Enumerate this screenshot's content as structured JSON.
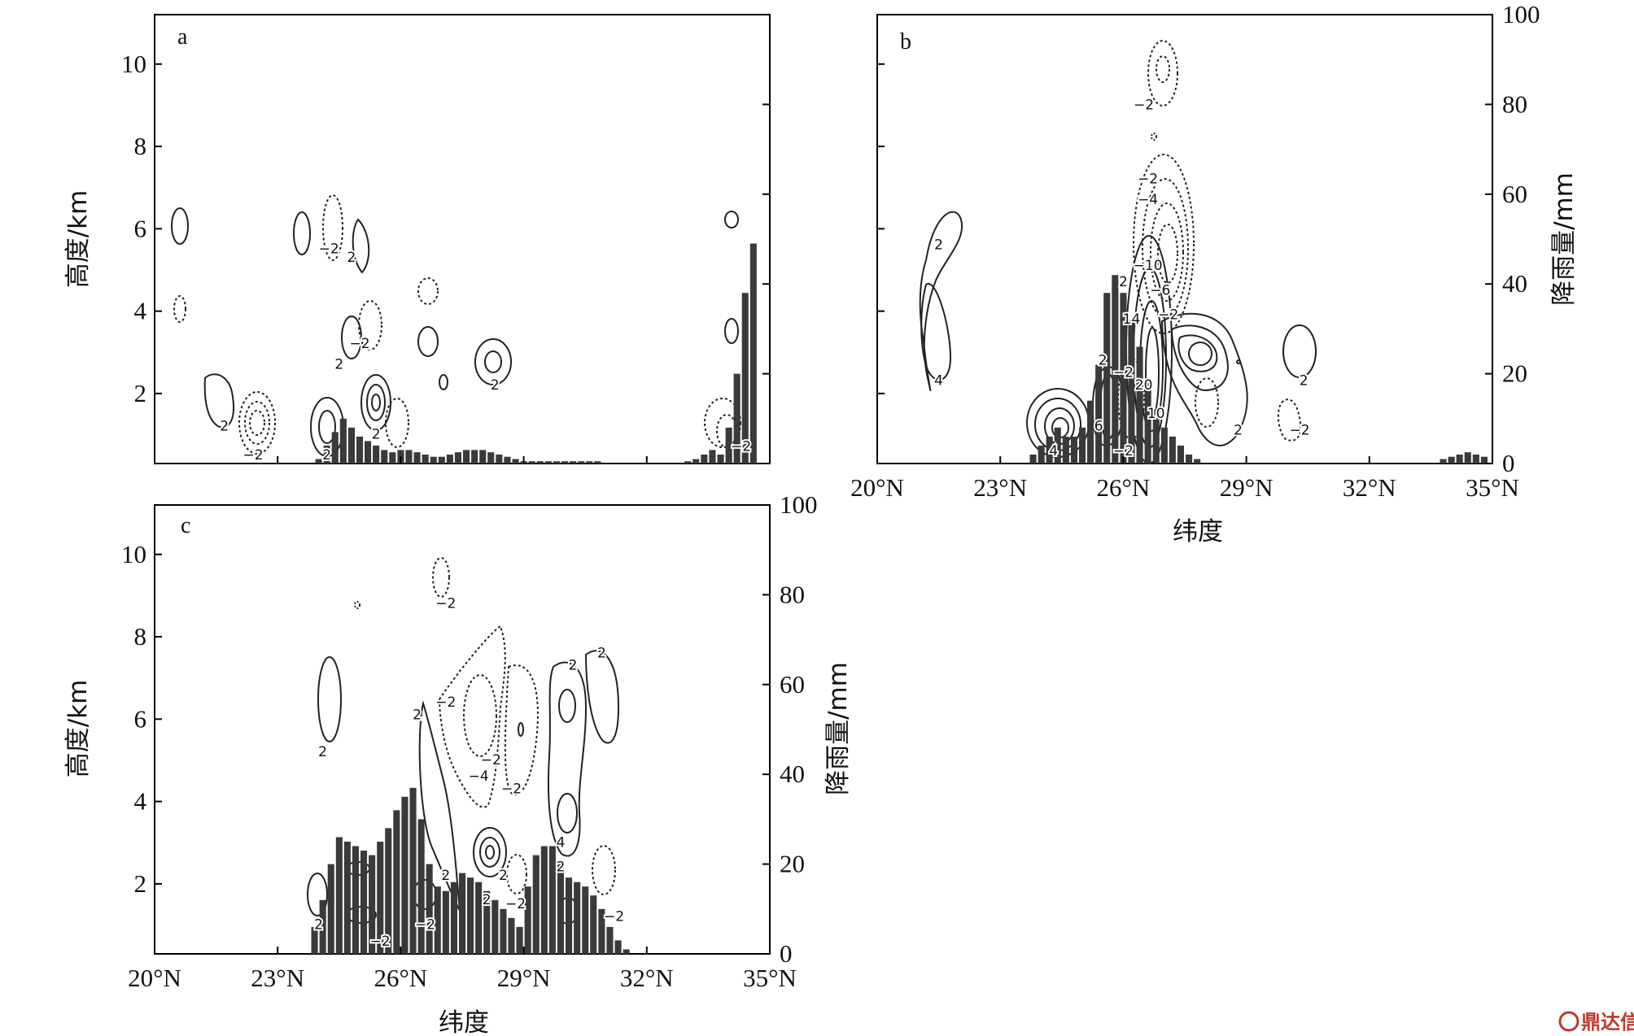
{
  "chart_data": [
    {
      "id": "a",
      "type": "bar",
      "panel_label": "a",
      "xlabel": "",
      "ylabel": "高度/km",
      "y2label": "",
      "xlim": [
        20,
        35
      ],
      "ylim": [
        0.3,
        11.2
      ],
      "y2lim": [
        0,
        100
      ],
      "x_ticks": [
        20,
        23,
        26,
        29,
        32,
        35
      ],
      "x_tick_labels": [],
      "y_ticks": [
        2,
        4,
        6,
        8,
        10
      ],
      "y_tick_labels": [
        "2",
        "4",
        "6",
        "8",
        "10"
      ],
      "y2_ticks": [
        0,
        20,
        40,
        60,
        80,
        100
      ],
      "y2_tick_labels": [],
      "bar_width_deg": 0.2,
      "bars": [
        {
          "x": 24.0,
          "v": 1
        },
        {
          "x": 24.2,
          "v": 4
        },
        {
          "x": 24.4,
          "v": 7
        },
        {
          "x": 24.6,
          "v": 10
        },
        {
          "x": 24.8,
          "v": 8
        },
        {
          "x": 25.0,
          "v": 6
        },
        {
          "x": 25.2,
          "v": 5
        },
        {
          "x": 25.4,
          "v": 4
        },
        {
          "x": 25.6,
          "v": 3
        },
        {
          "x": 25.8,
          "v": 2.5
        },
        {
          "x": 26.0,
          "v": 3
        },
        {
          "x": 26.2,
          "v": 3
        },
        {
          "x": 26.4,
          "v": 2.5
        },
        {
          "x": 26.6,
          "v": 2
        },
        {
          "x": 26.8,
          "v": 1.5
        },
        {
          "x": 27.0,
          "v": 1.5
        },
        {
          "x": 27.2,
          "v": 2
        },
        {
          "x": 27.4,
          "v": 2.5
        },
        {
          "x": 27.6,
          "v": 3
        },
        {
          "x": 27.8,
          "v": 3
        },
        {
          "x": 28.0,
          "v": 3
        },
        {
          "x": 28.2,
          "v": 2.5
        },
        {
          "x": 28.4,
          "v": 2
        },
        {
          "x": 28.6,
          "v": 1.5
        },
        {
          "x": 28.8,
          "v": 1
        },
        {
          "x": 29.0,
          "v": 0.5
        },
        {
          "x": 29.2,
          "v": 0.5
        },
        {
          "x": 29.4,
          "v": 0.5
        },
        {
          "x": 29.6,
          "v": 0.5
        },
        {
          "x": 29.8,
          "v": 0.5
        },
        {
          "x": 30.0,
          "v": 0.5
        },
        {
          "x": 30.2,
          "v": 0.5
        },
        {
          "x": 30.4,
          "v": 0.5
        },
        {
          "x": 30.6,
          "v": 0.5
        },
        {
          "x": 30.8,
          "v": 0.5
        },
        {
          "x": 33.0,
          "v": 0.5
        },
        {
          "x": 33.2,
          "v": 1
        },
        {
          "x": 33.4,
          "v": 2
        },
        {
          "x": 33.6,
          "v": 3
        },
        {
          "x": 33.8,
          "v": 2
        },
        {
          "x": 34.0,
          "v": 8
        },
        {
          "x": 34.2,
          "v": 20
        },
        {
          "x": 34.4,
          "v": 38
        },
        {
          "x": 34.6,
          "v": 49
        }
      ],
      "contour_labels": [
        {
          "x": 24.25,
          "y": 5.5,
          "t": "−2"
        },
        {
          "x": 24.8,
          "y": 5.3,
          "t": "2"
        },
        {
          "x": 25.0,
          "y": 3.2,
          "t": "−2"
        },
        {
          "x": 24.5,
          "y": 2.7,
          "t": "2"
        },
        {
          "x": 25.4,
          "y": 1.0,
          "t": "2"
        },
        {
          "x": 24.2,
          "y": 0.5,
          "t": "2"
        },
        {
          "x": 28.3,
          "y": 2.2,
          "t": "2"
        },
        {
          "x": 21.7,
          "y": 1.2,
          "t": "2"
        },
        {
          "x": 22.4,
          "y": 0.5,
          "t": "−2"
        },
        {
          "x": 34.3,
          "y": 0.7,
          "t": "−2"
        }
      ]
    },
    {
      "id": "b",
      "type": "bar",
      "panel_label": "b",
      "xlabel": "纬度",
      "ylabel": "",
      "y2label": "降雨量/mm",
      "xlim": [
        20,
        35
      ],
      "ylim": [
        0.3,
        11.2
      ],
      "y2lim": [
        0,
        100
      ],
      "x_ticks": [
        20,
        23,
        26,
        29,
        32,
        35
      ],
      "x_tick_labels": [
        "20°N",
        "23°N",
        "26°N",
        "29°N",
        "32°N",
        "35°N"
      ],
      "y_ticks": [
        2,
        4,
        6,
        8,
        10
      ],
      "y_tick_labels": [],
      "y2_ticks": [
        0,
        20,
        40,
        60,
        80,
        100
      ],
      "y2_tick_labels": [
        "0",
        "20",
        "40",
        "60",
        "80",
        "100"
      ],
      "bar_width_deg": 0.2,
      "bars": [
        {
          "x": 23.8,
          "v": 2
        },
        {
          "x": 24.0,
          "v": 4
        },
        {
          "x": 24.2,
          "v": 6
        },
        {
          "x": 24.4,
          "v": 8
        },
        {
          "x": 24.6,
          "v": 6
        },
        {
          "x": 24.8,
          "v": 6
        },
        {
          "x": 25.0,
          "v": 8
        },
        {
          "x": 25.2,
          "v": 14
        },
        {
          "x": 25.4,
          "v": 22
        },
        {
          "x": 25.6,
          "v": 38
        },
        {
          "x": 25.8,
          "v": 42
        },
        {
          "x": 26.0,
          "v": 38
        },
        {
          "x": 26.2,
          "v": 32
        },
        {
          "x": 26.4,
          "v": 26
        },
        {
          "x": 26.6,
          "v": 18
        },
        {
          "x": 26.8,
          "v": 12
        },
        {
          "x": 27.0,
          "v": 8
        },
        {
          "x": 27.2,
          "v": 6
        },
        {
          "x": 27.4,
          "v": 4
        },
        {
          "x": 27.6,
          "v": 2
        },
        {
          "x": 27.8,
          "v": 1
        },
        {
          "x": 33.8,
          "v": 1
        },
        {
          "x": 34.0,
          "v": 1.5
        },
        {
          "x": 34.2,
          "v": 2
        },
        {
          "x": 34.4,
          "v": 2.5
        },
        {
          "x": 34.6,
          "v": 2
        },
        {
          "x": 34.8,
          "v": 1.5
        }
      ],
      "contour_labels": [
        {
          "x": 26.5,
          "y": 9.0,
          "t": "−2"
        },
        {
          "x": 26.6,
          "y": 7.2,
          "t": "−2"
        },
        {
          "x": 26.6,
          "y": 6.7,
          "t": "−4"
        },
        {
          "x": 26.6,
          "y": 5.1,
          "t": "−10"
        },
        {
          "x": 26.0,
          "y": 4.7,
          "t": "2"
        },
        {
          "x": 26.9,
          "y": 4.5,
          "t": "−6"
        },
        {
          "x": 26.2,
          "y": 3.8,
          "t": "14"
        },
        {
          "x": 27.1,
          "y": 3.9,
          "t": "−2"
        },
        {
          "x": 25.5,
          "y": 2.8,
          "t": "2"
        },
        {
          "x": 26.0,
          "y": 2.5,
          "t": "−2"
        },
        {
          "x": 26.5,
          "y": 2.2,
          "t": "20"
        },
        {
          "x": 25.4,
          "y": 1.2,
          "t": "6"
        },
        {
          "x": 26.8,
          "y": 1.5,
          "t": "10"
        },
        {
          "x": 24.3,
          "y": 0.6,
          "t": "4"
        },
        {
          "x": 26.0,
          "y": 0.6,
          "t": "−2"
        },
        {
          "x": 21.5,
          "y": 5.6,
          "t": "2"
        },
        {
          "x": 21.5,
          "y": 2.3,
          "t": "4"
        },
        {
          "x": 28.8,
          "y": 1.1,
          "t": "2"
        },
        {
          "x": 30.4,
          "y": 2.3,
          "t": "2"
        },
        {
          "x": 30.3,
          "y": 1.1,
          "t": "−2"
        }
      ]
    },
    {
      "id": "c",
      "type": "bar",
      "panel_label": "c",
      "xlabel": "纬度",
      "ylabel": "高度/km",
      "y2label": "降雨量/mm",
      "xlim": [
        20,
        35
      ],
      "ylim": [
        0.3,
        11.2
      ],
      "y2lim": [
        0,
        100
      ],
      "x_ticks": [
        20,
        23,
        26,
        29,
        32,
        35
      ],
      "x_tick_labels": [
        "20°N",
        "23°N",
        "26°N",
        "29°N",
        "32°N",
        "35°N"
      ],
      "y_ticks": [
        2,
        4,
        6,
        8,
        10
      ],
      "y_tick_labels": [
        "2",
        "4",
        "6",
        "8",
        "10"
      ],
      "y2_ticks": [
        0,
        20,
        40,
        60,
        80,
        100
      ],
      "y2_tick_labels": [
        "0",
        "20",
        "40",
        "60",
        "80",
        "100"
      ],
      "bar_width_deg": 0.2,
      "bars": [
        {
          "x": 23.9,
          "v": 6
        },
        {
          "x": 24.1,
          "v": 12
        },
        {
          "x": 24.3,
          "v": 20
        },
        {
          "x": 24.5,
          "v": 26
        },
        {
          "x": 24.7,
          "v": 25
        },
        {
          "x": 24.9,
          "v": 24
        },
        {
          "x": 25.1,
          "v": 23
        },
        {
          "x": 25.3,
          "v": 22
        },
        {
          "x": 25.5,
          "v": 25
        },
        {
          "x": 25.7,
          "v": 28
        },
        {
          "x": 25.9,
          "v": 32
        },
        {
          "x": 26.1,
          "v": 35
        },
        {
          "x": 26.3,
          "v": 37
        },
        {
          "x": 26.5,
          "v": 30
        },
        {
          "x": 26.7,
          "v": 20
        },
        {
          "x": 26.9,
          "v": 15
        },
        {
          "x": 27.1,
          "v": 14
        },
        {
          "x": 27.3,
          "v": 16
        },
        {
          "x": 27.5,
          "v": 18
        },
        {
          "x": 27.7,
          "v": 17
        },
        {
          "x": 27.9,
          "v": 16
        },
        {
          "x": 28.1,
          "v": 14
        },
        {
          "x": 28.3,
          "v": 12
        },
        {
          "x": 28.5,
          "v": 10
        },
        {
          "x": 28.7,
          "v": 8
        },
        {
          "x": 28.9,
          "v": 6
        },
        {
          "x": 29.1,
          "v": 15
        },
        {
          "x": 29.3,
          "v": 22
        },
        {
          "x": 29.5,
          "v": 24
        },
        {
          "x": 29.7,
          "v": 24
        },
        {
          "x": 29.9,
          "v": 20
        },
        {
          "x": 30.1,
          "v": 17
        },
        {
          "x": 30.3,
          "v": 16
        },
        {
          "x": 30.5,
          "v": 15
        },
        {
          "x": 30.7,
          "v": 13
        },
        {
          "x": 30.9,
          "v": 10
        },
        {
          "x": 31.1,
          "v": 6
        },
        {
          "x": 31.3,
          "v": 3
        },
        {
          "x": 31.5,
          "v": 1
        }
      ],
      "contour_labels": [
        {
          "x": 27.1,
          "y": 8.8,
          "t": "−2"
        },
        {
          "x": 24.1,
          "y": 5.2,
          "t": "2"
        },
        {
          "x": 27.1,
          "y": 6.4,
          "t": "−2"
        },
        {
          "x": 26.4,
          "y": 6.1,
          "t": "2"
        },
        {
          "x": 28.2,
          "y": 5.0,
          "t": "−2"
        },
        {
          "x": 27.9,
          "y": 4.6,
          "t": "−4"
        },
        {
          "x": 28.7,
          "y": 4.3,
          "t": "−2"
        },
        {
          "x": 30.2,
          "y": 7.3,
          "t": "2"
        },
        {
          "x": 30.9,
          "y": 7.6,
          "t": "2"
        },
        {
          "x": 29.9,
          "y": 3.0,
          "t": "4"
        },
        {
          "x": 29.9,
          "y": 2.4,
          "t": "2"
        },
        {
          "x": 27.1,
          "y": 2.2,
          "t": "2"
        },
        {
          "x": 28.1,
          "y": 1.6,
          "t": "2"
        },
        {
          "x": 28.8,
          "y": 1.5,
          "t": "−2"
        },
        {
          "x": 28.5,
          "y": 2.2,
          "t": "2"
        },
        {
          "x": 24.0,
          "y": 1.0,
          "t": "2"
        },
        {
          "x": 26.6,
          "y": 1.0,
          "t": "−2"
        },
        {
          "x": 25.5,
          "y": 0.6,
          "t": "−2"
        },
        {
          "x": 31.2,
          "y": 1.2,
          "t": "−2"
        }
      ]
    }
  ],
  "watermark": {
    "icon": "dingdaxin-logo-icon",
    "text": "鼎达信"
  }
}
